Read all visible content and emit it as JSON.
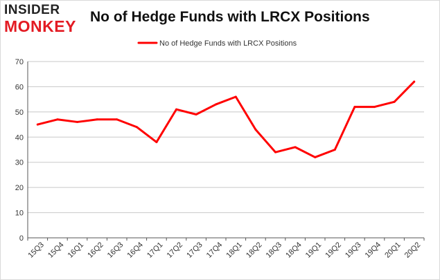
{
  "brand": {
    "line1": "INSIDER",
    "line2": "MONKEY"
  },
  "colors": {
    "series": "#ff0000",
    "grid": "#c8c8c8",
    "axis": "#555555",
    "brand_red": "#e31b23"
  },
  "chart_data": {
    "type": "line",
    "title": "No of Hedge Funds with LRCX Positions",
    "xlabel": "",
    "ylabel": "",
    "categories": [
      "15Q3",
      "15Q4",
      "16Q1",
      "16Q2",
      "16Q3",
      "16Q4",
      "17Q1",
      "17Q2",
      "17Q3",
      "17Q4",
      "18Q1",
      "18Q2",
      "18Q3",
      "18Q4",
      "19Q1",
      "19Q2",
      "19Q3",
      "19Q4",
      "20Q1",
      "20Q2"
    ],
    "series": [
      {
        "name": "No of Hedge Funds with LRCX Positions",
        "values": [
          45,
          47,
          46,
          47,
          47,
          44,
          38,
          51,
          49,
          53,
          56,
          43,
          34,
          36,
          32,
          35,
          52,
          52,
          54,
          62
        ]
      }
    ],
    "ylim": [
      0,
      70
    ],
    "yticks": [
      0,
      10,
      20,
      30,
      40,
      50,
      60,
      70
    ],
    "grid": true,
    "legend": "top-center"
  }
}
